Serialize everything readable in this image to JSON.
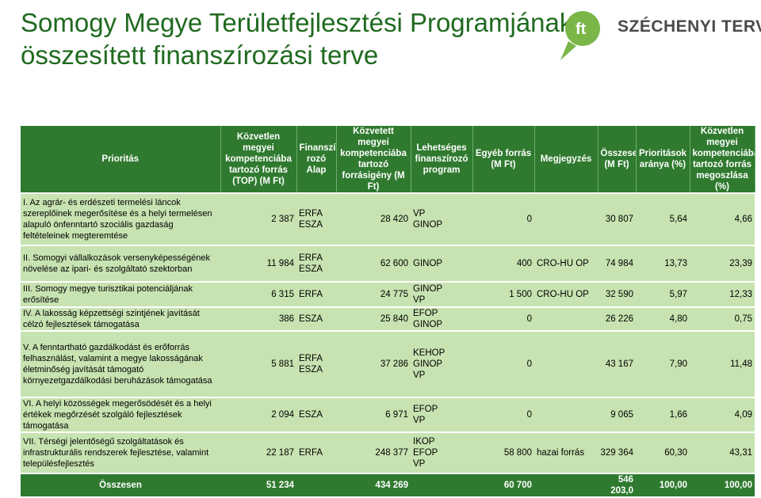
{
  "title": {
    "line1": "Somogy Megye Területfejlesztési Programjának",
    "line2": "összesített finanszírozási terve"
  },
  "logo": {
    "text": "SZÉCHENYI TERV",
    "mark_text": "ft",
    "color": "#7ab648"
  },
  "colors": {
    "header": "#2f7a2f",
    "row": "#c7e3b1",
    "title": "#1f6a1f"
  },
  "table": {
    "headers": [
      "Prioritás",
      "Közvetlen megyei kompetenciába tartozó forrás (TOP) (M Ft)",
      "Finanszí-rozó Alap",
      "Közvetett megyei kompetenciába tartozó forrásigény (M Ft)",
      "Lehetséges finanszírozó program",
      "Egyéb forrás (M Ft)",
      "Megjegyzés",
      "Összesen (M Ft)",
      "Prioritások aránya (%)",
      "Közvetlen megyei kompetenciába tartozó forrás megoszlása (%)"
    ],
    "rows": [
      {
        "priority": "I. Az agrár- és erdészeti termelési láncok szereplőinek megerősítése és a helyi termelésen alapuló önfenntartó szociális gazdaság feltételeinek megteremtése",
        "top": "2 387",
        "fund": "ERFA\nESZA",
        "indirect": "28 420",
        "program": "VP\nGINOP",
        "other": "0",
        "note": "",
        "total": "30 807",
        "ratio": "5,64",
        "share": "4,66"
      },
      {
        "priority": "II. Somogyi vállalkozások versenyképességének növelése az ipari- és szolgáltató szektorban",
        "top": "11 984",
        "fund": "ERFA\nESZA",
        "indirect": "62 600",
        "program": "GINOP",
        "other": "400",
        "note": "CRO-HU OP",
        "total": "74 984",
        "ratio": "13,73",
        "share": "23,39"
      },
      {
        "priority": "III. Somogy megye turisztikai potenciáljának erősítése",
        "top": "6 315",
        "fund": "ERFA",
        "indirect": "24 775",
        "program": "GINOP\nVP",
        "other": "1 500",
        "note": "CRO-HU OP",
        "total": "32 590",
        "ratio": "5,97",
        "share": "12,33"
      },
      {
        "priority": "IV. A lakosság képzettségi szintjének javítását célzó fejlesztések támogatása",
        "top": "386",
        "fund": "ESZA",
        "indirect": "25 840",
        "program": "EFOP\nGINOP",
        "other": "0",
        "note": "",
        "total": "26 226",
        "ratio": "4,80",
        "share": "0,75"
      },
      {
        "priority": "V. A fenntartható gazdálkodást és erőforrás felhasználást, valamint a megye lakosságának életminőség javítását támogató környezetgazdálkodási beruházások támogatása",
        "top": "5 881",
        "fund": "ERFA\nESZA",
        "indirect": "37 286",
        "program": "KEHOP\nGINOP\nVP",
        "other": "0",
        "note": "",
        "total": "43 167",
        "ratio": "7,90",
        "share": "11,48"
      },
      {
        "priority": "VI. A helyi közösségek megerősödését és a helyi értékek megőrzését szolgáló fejlesztések támogatása",
        "top": "2 094",
        "fund": "ESZA",
        "indirect": "6 971",
        "program": "EFOP\nVP",
        "other": "0",
        "note": "",
        "total": "9 065",
        "ratio": "1,66",
        "share": "4,09"
      },
      {
        "priority": "VII. Térségi jelentőségű szolgáltatások és infrastrukturális rendszerek fejlesztése, valamint településfejlesztés",
        "top": "22 187",
        "fund": "ERFA",
        "indirect": "248 377",
        "program": "IKOP\nEFOP\nVP",
        "other": "58 800",
        "note": "hazai forrás",
        "total": "329 364",
        "ratio": "60,30",
        "share": "43,31"
      }
    ],
    "total_row": {
      "label": "Összesen",
      "top": "51 234",
      "indirect": "434 269",
      "other": "60 700",
      "total": "546 203,0",
      "ratio": "100,00",
      "share": "100,00"
    }
  }
}
